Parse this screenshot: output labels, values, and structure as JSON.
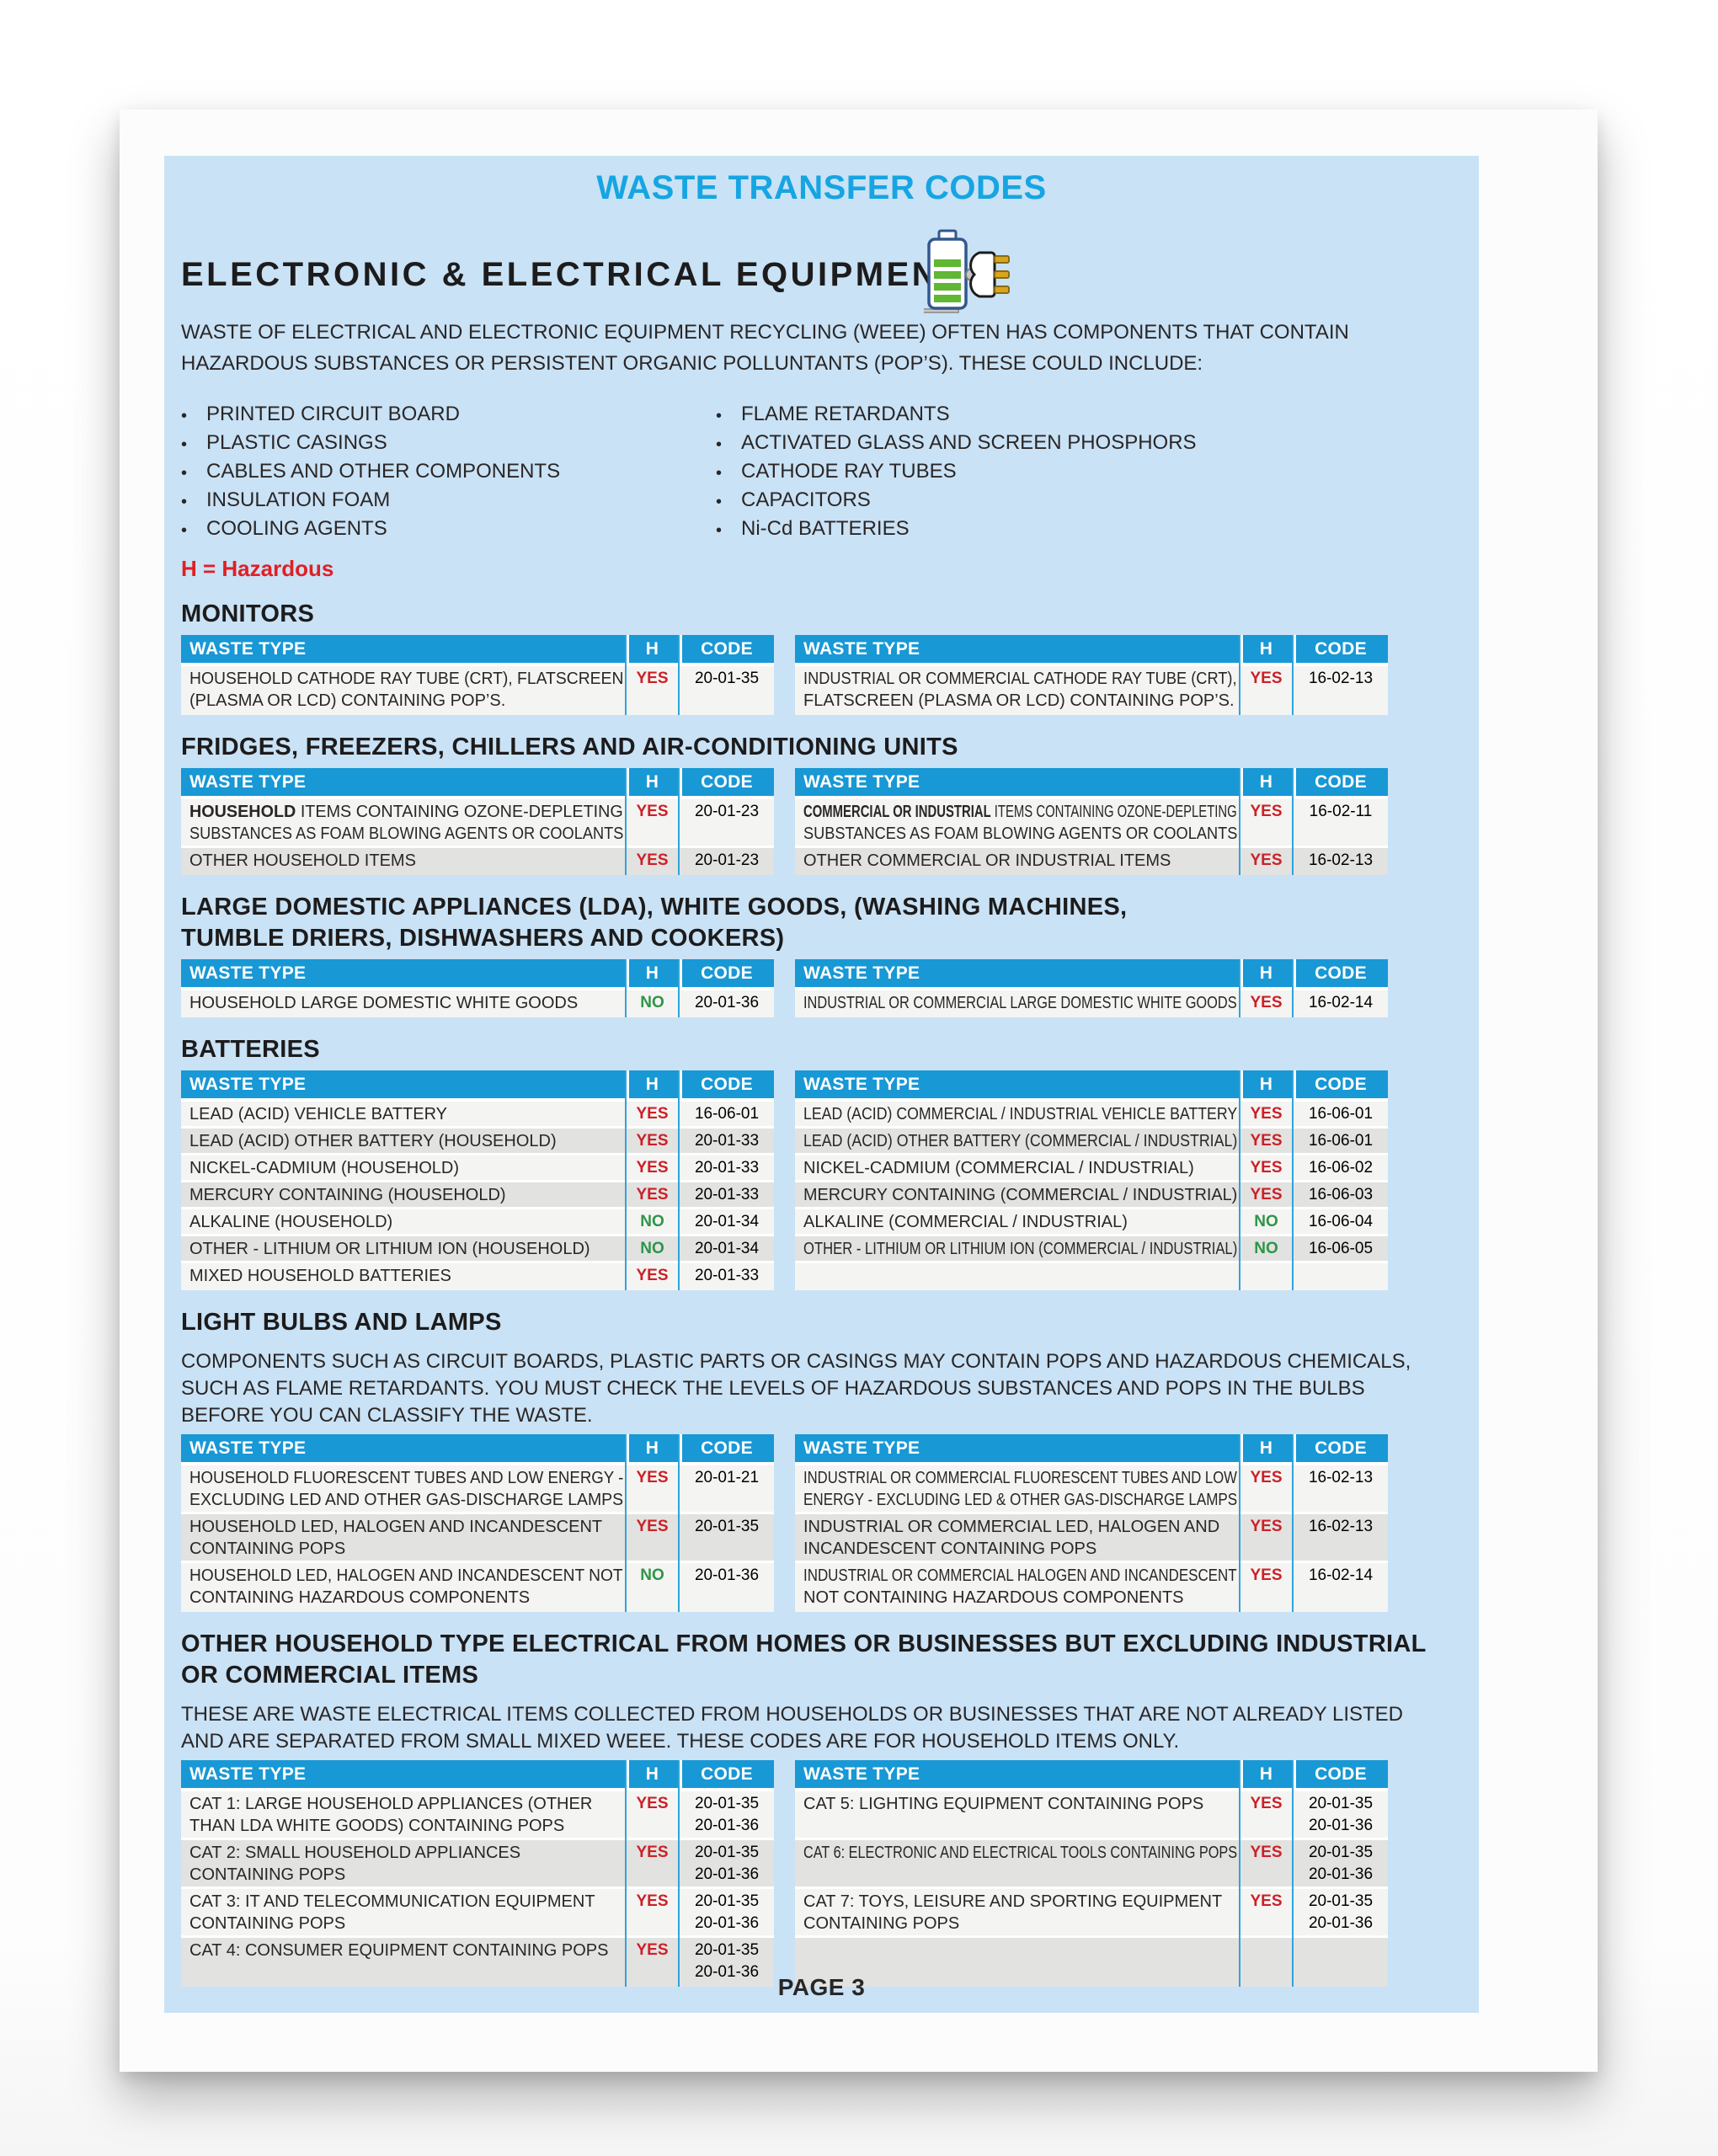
{
  "document": {
    "title": "WASTE TRANSFER CODES",
    "page_label": "PAGE 3"
  },
  "status_colors": {
    "accent_blue": "#16a5e2",
    "table_header_blue": "#1898d5",
    "panel_blue": "#c9e2f5",
    "hazard_red": "#e01f26",
    "yes_red": "#cc2027",
    "no_green": "#2d9547"
  },
  "header": {
    "section_title": "ELECTRONIC & ELECTRICAL EQUIPMENT",
    "icon": "battery-and-plug-icon",
    "intro_lines": [
      "WASTE OF ELECTRICAL AND ELECTRONIC EQUIPMENT RECYCLING (WEEE) OFTEN HAS COMPONENTS THAT CONTAIN",
      "HAZARDOUS SUBSTANCES OR PERSISTENT ORGANIC POLLUNTANTS (POP’S). THESE COULD INCLUDE:"
    ],
    "bullets_left": [
      "PRINTED CIRCUIT BOARD",
      "PLASTIC CASINGS",
      "CABLES AND OTHER COMPONENTS",
      "INSULATION FOAM",
      "COOLING AGENTS"
    ],
    "bullets_right": [
      "FLAME RETARDANTS",
      "ACTIVATED GLASS AND SCREEN PHOSPHORS",
      "CATHODE RAY TUBES",
      "CAPACITORS",
      "Ni-Cd BATTERIES"
    ],
    "hazard_key": "H = Hazardous"
  },
  "table_columns": {
    "waste_type": "WASTE TYPE",
    "hazardous": "H",
    "code": "CODE"
  },
  "sections": [
    {
      "id": "monitors",
      "heading_lines": [
        "MONITORS"
      ],
      "intro_lines": [],
      "left_rows": [
        {
          "lines": [
            "HOUSEHOLD CATHODE RAY TUBE (CRT), FLATSCREEN",
            "(PLASMA OR LCD) CONTAINING POP’S."
          ],
          "h": "YES",
          "codes": [
            "20-01-35"
          ]
        }
      ],
      "right_rows": [
        {
          "lines": [
            "INDUSTRIAL OR COMMERCIAL CATHODE RAY TUBE (CRT),",
            "FLATSCREEN (PLASMA OR LCD) CONTAINING POP’S."
          ],
          "h": "YES",
          "codes": [
            "16-02-13"
          ]
        }
      ]
    },
    {
      "id": "fridges",
      "heading_lines": [
        "FRIDGES, FREEZERS, CHILLERS AND AIR-CONDITIONING UNITS"
      ],
      "intro_lines": [],
      "left_rows": [
        {
          "lines": [
            {
              "b": "HOUSEHOLD",
              "t": " ITEMS CONTAINING OZONE-DEPLETING"
            },
            "SUBSTANCES AS FOAM BLOWING AGENTS OR COOLANTS"
          ],
          "h": "YES",
          "codes": [
            "20-01-23"
          ]
        },
        {
          "lines": [
            "OTHER HOUSEHOLD ITEMS"
          ],
          "h": "YES",
          "codes": [
            "20-01-23"
          ]
        }
      ],
      "right_rows": [
        {
          "lines": [
            {
              "b": "COMMERCIAL OR INDUSTRIAL",
              "t": " ITEMS CONTAINING OZONE-DEPLETING"
            },
            "SUBSTANCES AS FOAM BLOWING AGENTS OR COOLANTS"
          ],
          "h": "YES",
          "codes": [
            "16-02-11"
          ]
        },
        {
          "lines": [
            "OTHER COMMERCIAL OR INDUSTRIAL ITEMS"
          ],
          "h": "YES",
          "codes": [
            "16-02-13"
          ]
        }
      ]
    },
    {
      "id": "large-domestic",
      "heading_lines": [
        "LARGE DOMESTIC APPLIANCES (LDA), WHITE GOODS, (WASHING MACHINES,",
        "TUMBLE DRIERS, DISHWASHERS AND COOKERS)"
      ],
      "intro_lines": [],
      "left_rows": [
        {
          "lines": [
            "HOUSEHOLD LARGE DOMESTIC WHITE GOODS"
          ],
          "h": "NO",
          "codes": [
            "20-01-36"
          ]
        }
      ],
      "right_rows": [
        {
          "lines": [
            "INDUSTRIAL OR COMMERCIAL LARGE DOMESTIC WHITE GOODS"
          ],
          "h": "YES",
          "codes": [
            "16-02-14"
          ]
        }
      ]
    },
    {
      "id": "batteries",
      "heading_lines": [
        "BATTERIES"
      ],
      "intro_lines": [],
      "left_rows": [
        {
          "lines": [
            "LEAD (ACID) VEHICLE BATTERY"
          ],
          "h": "YES",
          "codes": [
            "16-06-01"
          ]
        },
        {
          "lines": [
            "LEAD (ACID) OTHER BATTERY (HOUSEHOLD)"
          ],
          "h": "YES",
          "codes": [
            "20-01-33"
          ]
        },
        {
          "lines": [
            "NICKEL-CADMIUM (HOUSEHOLD)"
          ],
          "h": "YES",
          "codes": [
            "20-01-33"
          ]
        },
        {
          "lines": [
            "MERCURY CONTAINING (HOUSEHOLD)"
          ],
          "h": "YES",
          "codes": [
            "20-01-33"
          ]
        },
        {
          "lines": [
            "ALKALINE (HOUSEHOLD)"
          ],
          "h": "NO",
          "codes": [
            "20-01-34"
          ]
        },
        {
          "lines": [
            "OTHER - LITHIUM OR LITHIUM ION (HOUSEHOLD)"
          ],
          "h": "NO",
          "codes": [
            "20-01-34"
          ]
        },
        {
          "lines": [
            "MIXED HOUSEHOLD BATTERIES"
          ],
          "h": "YES",
          "codes": [
            "20-01-33"
          ]
        }
      ],
      "right_rows": [
        {
          "lines": [
            "LEAD (ACID) COMMERCIAL / INDUSTRIAL VEHICLE BATTERY"
          ],
          "h": "YES",
          "codes": [
            "16-06-01"
          ]
        },
        {
          "lines": [
            "LEAD (ACID) OTHER BATTERY (COMMERCIAL / INDUSTRIAL)"
          ],
          "h": "YES",
          "codes": [
            "16-06-01"
          ]
        },
        {
          "lines": [
            "NICKEL-CADMIUM (COMMERCIAL / INDUSTRIAL)"
          ],
          "h": "YES",
          "codes": [
            "16-06-02"
          ]
        },
        {
          "lines": [
            "MERCURY CONTAINING (COMMERCIAL / INDUSTRIAL)"
          ],
          "h": "YES",
          "codes": [
            "16-06-03"
          ]
        },
        {
          "lines": [
            "ALKALINE (COMMERCIAL / INDUSTRIAL)"
          ],
          "h": "NO",
          "codes": [
            "16-06-04"
          ]
        },
        {
          "lines": [
            "OTHER - LITHIUM OR LITHIUM ION (COMMERCIAL / INDUSTRIAL)"
          ],
          "h": "NO",
          "codes": [
            "16-06-05"
          ]
        },
        {
          "lines": [],
          "h": "",
          "codes": []
        }
      ]
    },
    {
      "id": "light-bulbs",
      "heading_lines": [
        "LIGHT BULBS AND LAMPS"
      ],
      "intro_lines": [
        "COMPONENTS SUCH AS CIRCUIT BOARDS, PLASTIC PARTS OR CASINGS MAY CONTAIN POPS AND HAZARDOUS CHEMICALS,",
        "SUCH AS FLAME RETARDANTS. YOU MUST CHECK THE LEVELS OF HAZARDOUS SUBSTANCES AND POPS IN THE BULBS",
        "BEFORE YOU CAN CLASSIFY THE WASTE."
      ],
      "left_rows": [
        {
          "lines": [
            "HOUSEHOLD FLUORESCENT TUBES AND LOW ENERGY -",
            "EXCLUDING LED AND OTHER GAS-DISCHARGE LAMPS"
          ],
          "h": "YES",
          "codes": [
            "20-01-21"
          ]
        },
        {
          "lines": [
            "HOUSEHOLD LED, HALOGEN AND INCANDESCENT",
            "CONTAINING POPS"
          ],
          "h": "YES",
          "codes": [
            "20-01-35"
          ]
        },
        {
          "lines": [
            "HOUSEHOLD LED, HALOGEN AND INCANDESCENT NOT",
            "CONTAINING HAZARDOUS COMPONENTS"
          ],
          "h": "NO",
          "codes": [
            "20-01-36"
          ]
        }
      ],
      "right_rows": [
        {
          "lines": [
            "INDUSTRIAL OR COMMERCIAL FLUORESCENT TUBES AND LOW",
            "ENERGY - EXCLUDING LED & OTHER GAS-DISCHARGE LAMPS"
          ],
          "h": "YES",
          "codes": [
            "16-02-13"
          ]
        },
        {
          "lines": [
            "INDUSTRIAL OR COMMERCIAL LED, HALOGEN AND",
            "INCANDESCENT CONTAINING POPS"
          ],
          "h": "YES",
          "codes": [
            "16-02-13"
          ]
        },
        {
          "lines": [
            "INDUSTRIAL OR COMMERCIAL HALOGEN AND INCANDESCENT",
            "NOT CONTAINING HAZARDOUS COMPONENTS"
          ],
          "h": "YES",
          "codes": [
            "16-02-14"
          ]
        }
      ]
    },
    {
      "id": "other-household",
      "heading_lines": [
        "OTHER HOUSEHOLD TYPE ELECTRICAL FROM HOMES OR BUSINESSES BUT EXCLUDING INDUSTRIAL",
        "OR COMMERCIAL ITEMS"
      ],
      "intro_lines": [
        "THESE ARE WASTE ELECTRICAL ITEMS COLLECTED FROM HOUSEHOLDS OR BUSINESSES THAT ARE NOT ALREADY LISTED",
        "AND ARE SEPARATED FROM SMALL MIXED WEEE. THESE CODES ARE FOR HOUSEHOLD ITEMS ONLY."
      ],
      "left_rows": [
        {
          "lines": [
            "CAT 1: LARGE HOUSEHOLD APPLIANCES (OTHER",
            "THAN LDA WHITE GOODS) CONTAINING POPS"
          ],
          "h": "YES",
          "codes": [
            "20-01-35",
            "20-01-36"
          ]
        },
        {
          "lines": [
            "CAT 2: SMALL HOUSEHOLD APPLIANCES",
            "CONTAINING POPS"
          ],
          "h": "YES",
          "codes": [
            "20-01-35",
            "20-01-36"
          ]
        },
        {
          "lines": [
            "CAT 3: IT AND TELECOMMUNICATION EQUIPMENT",
            "CONTAINING POPS"
          ],
          "h": "YES",
          "codes": [
            "20-01-35",
            "20-01-36"
          ]
        },
        {
          "lines": [
            "CAT 4: CONSUMER EQUIPMENT CONTAINING POPS"
          ],
          "h": "YES",
          "codes": [
            "20-01-35",
            "20-01-36"
          ]
        }
      ],
      "right_rows": [
        {
          "lines": [
            "CAT 5: LIGHTING EQUIPMENT CONTAINING POPS"
          ],
          "h": "YES",
          "codes": [
            "20-01-35",
            "20-01-36"
          ]
        },
        {
          "lines": [
            "CAT 6: ELECTRONIC AND ELECTRICAL TOOLS CONTAINING POPS"
          ],
          "h": "YES",
          "codes": [
            "20-01-35",
            "20-01-36"
          ]
        },
        {
          "lines": [
            "CAT 7: TOYS, LEISURE AND SPORTING EQUIPMENT",
            "CONTAINING POPS"
          ],
          "h": "YES",
          "codes": [
            "20-01-35",
            "20-01-36"
          ]
        },
        {
          "lines": [],
          "h": "",
          "codes": []
        }
      ]
    }
  ]
}
